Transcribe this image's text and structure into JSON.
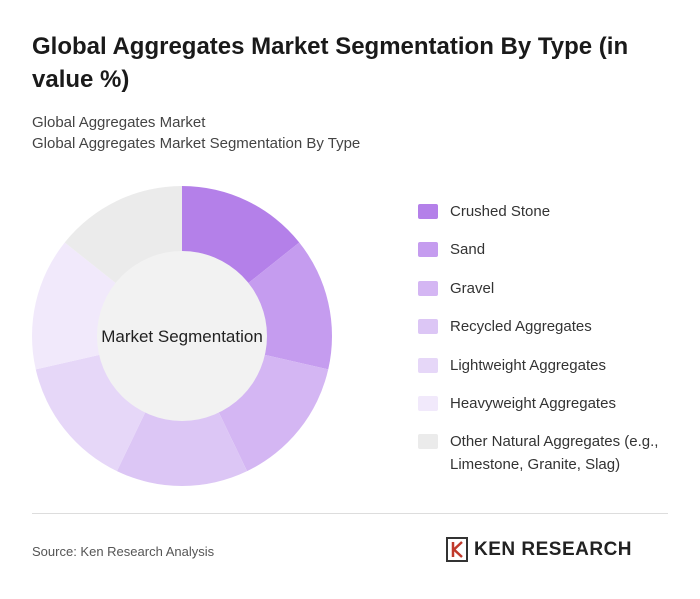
{
  "chart_data": {
    "type": "pie",
    "title": "Global Aggregates Market Segmentation By Type (in value %)",
    "subtitles": [
      "Global Aggregates Market",
      "Global Aggregates Market Segmentation By Type"
    ],
    "center_label": "Market Segmentation",
    "categories": [
      "Crushed Stone",
      "Sand",
      "Gravel",
      "Recycled Aggregates",
      "Lightweight Aggregates",
      "Heavyweight Aggregates",
      "Other Natural Aggregates (e.g., Limestone, Granite, Slag)"
    ],
    "values": [
      14.3,
      14.3,
      14.3,
      14.3,
      14.3,
      14.3,
      14.3
    ],
    "colors": [
      "#b480e9",
      "#c59cef",
      "#d4b6f3",
      "#dcc6f5",
      "#e6d7f8",
      "#f1e9fb",
      "#ebebeb"
    ],
    "source": "Source: Ken Research Analysis",
    "brand": "KEN RESEARCH"
  }
}
